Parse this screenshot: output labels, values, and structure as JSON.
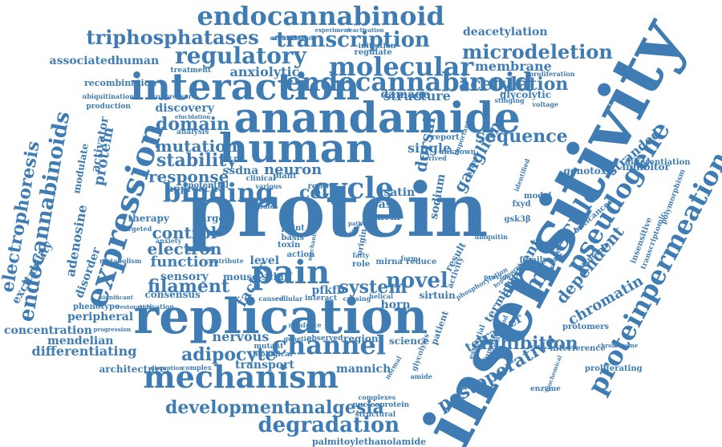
{
  "cloud": {
    "color": "#3e7cb3",
    "background": "#ffffff",
    "words": [
      {
        "text": "protein",
        "size": 92
      },
      {
        "text": "insensitivity",
        "size": 86,
        "rot": -62
      },
      {
        "text": "replication",
        "size": 60
      },
      {
        "text": "anandamide",
        "size": 52
      },
      {
        "text": "human",
        "size": 50
      },
      {
        "text": "interaction",
        "size": 46
      },
      {
        "text": "mechanism",
        "size": 38
      },
      {
        "text": "pain",
        "size": 40
      },
      {
        "text": "expression",
        "size": 40,
        "rot": -72
      },
      {
        "text": "molecular",
        "size": 32
      },
      {
        "text": "endocannabinoid",
        "size": 32
      },
      {
        "text": "binding",
        "size": 32
      },
      {
        "text": "cycle",
        "size": 36
      },
      {
        "text": "channel",
        "size": 32
      },
      {
        "text": "pseudogene",
        "size": 32,
        "rot": -58
      },
      {
        "text": "proteinpermeation",
        "size": 32,
        "rot": -62
      },
      {
        "text": "molecule",
        "size": 30,
        "rot": -58
      },
      {
        "text": "transcription",
        "size": 26
      },
      {
        "text": "regulatory",
        "size": 28
      },
      {
        "text": "triphosphatases",
        "size": 24
      },
      {
        "text": "microdeletion",
        "size": 24
      },
      {
        "text": "acetylation",
        "size": 22
      },
      {
        "text": "degradation",
        "size": 26
      },
      {
        "text": "development",
        "size": 22
      },
      {
        "text": "analgesia",
        "size": 22
      },
      {
        "text": "novel",
        "size": 26
      },
      {
        "text": "system",
        "size": 22
      },
      {
        "text": "domain",
        "size": 22
      },
      {
        "text": "stability",
        "size": 22
      },
      {
        "text": "mutation",
        "size": 20
      },
      {
        "text": "response",
        "size": 20
      },
      {
        "text": "control",
        "size": 20
      },
      {
        "text": "electron",
        "size": 20
      },
      {
        "text": "function",
        "size": 18
      },
      {
        "text": "filament",
        "size": 22
      },
      {
        "text": "adipocyte",
        "size": 22
      },
      {
        "text": "inhibition",
        "size": 22
      },
      {
        "text": "sequence",
        "size": 22
      },
      {
        "text": "postoperative",
        "size": 22,
        "rot": -30
      },
      {
        "text": "tetramer",
        "size": 16,
        "rot": -30
      },
      {
        "text": "endocannabinoids",
        "size": 26,
        "rot": -80
      },
      {
        "text": "electrophoresis",
        "size": 22,
        "rot": -80
      },
      {
        "text": "protein",
        "size": 18,
        "rot": -80
      },
      {
        "text": "adenosine",
        "size": 16,
        "rot": -80
      },
      {
        "text": "dorsal",
        "size": 20,
        "rot": -80
      },
      {
        "text": "ganglion",
        "size": 20,
        "rot": -60
      },
      {
        "text": "dependent",
        "size": 20,
        "rot": -50
      },
      {
        "text": "element",
        "size": 18,
        "rot": -60
      },
      {
        "text": "chromatin",
        "size": 18,
        "rot": -30
      },
      {
        "text": "terminus",
        "size": 14,
        "rot": -60
      },
      {
        "text": "neuron",
        "size": 18
      },
      {
        "text": "cell",
        "size": 22
      },
      {
        "text": "factor",
        "size": 18,
        "rot": -60
      },
      {
        "text": "pfkfb",
        "size": 14
      },
      {
        "text": "nervous",
        "size": 16
      },
      {
        "text": "mannich",
        "size": 14
      },
      {
        "text": "transport",
        "size": 14
      },
      {
        "text": "concentration",
        "size": 14
      },
      {
        "text": "differentiating",
        "size": 16
      },
      {
        "text": "mendelian",
        "size": 14
      },
      {
        "text": "architecture",
        "size": 12
      },
      {
        "text": "peripheral",
        "size": 14
      },
      {
        "text": "excitability",
        "size": 14,
        "rot": -60
      },
      {
        "text": "disorder",
        "size": 14,
        "rot": -70
      },
      {
        "text": "activator",
        "size": 14,
        "rot": -80
      },
      {
        "text": "modulate",
        "size": 12,
        "rot": -80
      },
      {
        "text": "associatedhuman",
        "size": 14
      },
      {
        "text": "recombination",
        "size": 11
      },
      {
        "text": "endocannabinoid",
        "size": 32
      },
      {
        "text": "damage",
        "size": 14
      },
      {
        "text": "structure",
        "size": 16
      },
      {
        "text": "anxiolytic",
        "size": 16
      },
      {
        "text": "membrane",
        "size": 16
      },
      {
        "text": "deacetylation",
        "size": 14
      },
      {
        "text": "glycolytic",
        "size": 12
      },
      {
        "text": "stranded",
        "size": 16,
        "rot": -40
      },
      {
        "text": "genotoxic",
        "size": 12
      },
      {
        "text": "inhibitor",
        "size": 12
      },
      {
        "text": "differentiation",
        "size": 10
      },
      {
        "text": "ssdna",
        "size": 14
      },
      {
        "text": "approach",
        "size": 12
      },
      {
        "text": "discovery",
        "size": 14
      },
      {
        "text": "single",
        "size": 16
      },
      {
        "text": "sodium",
        "size": 14,
        "rot": -80
      },
      {
        "text": "isatin",
        "size": 14
      },
      {
        "text": "base",
        "size": 14
      },
      {
        "text": "tmem",
        "size": 12
      },
      {
        "text": "therapy",
        "size": 12
      },
      {
        "text": "target",
        "size": 12
      },
      {
        "text": "sensory",
        "size": 14
      },
      {
        "text": "level",
        "size": 14
      },
      {
        "text": "mouse",
        "size": 12
      },
      {
        "text": "schiff",
        "size": 12
      },
      {
        "text": "consensus",
        "size": 12
      },
      {
        "text": "phenotype",
        "size": 10
      },
      {
        "text": "region",
        "size": 12
      },
      {
        "text": "science",
        "size": 12
      },
      {
        "text": "interference",
        "size": 10
      },
      {
        "text": "proliferating",
        "size": 10
      },
      {
        "text": "protomers",
        "size": 10
      },
      {
        "text": "sirtuin",
        "size": 12
      },
      {
        "text": "horn",
        "size": 14
      },
      {
        "text": "family",
        "size": 10
      },
      {
        "text": "mirna",
        "size": 10
      },
      {
        "text": "reduce",
        "size": 10
      },
      {
        "text": "palmitoylethanolamide",
        "size": 11
      },
      {
        "text": "nucleoprotein",
        "size": 9
      },
      {
        "text": "structural",
        "size": 9
      },
      {
        "text": "complexes",
        "size": 8
      },
      {
        "text": "activity",
        "size": 10,
        "rot": -70
      },
      {
        "text": "patient",
        "size": 11,
        "rot": -70
      },
      {
        "text": "result",
        "size": 12,
        "rot": -60
      },
      {
        "text": "report",
        "size": 10
      },
      {
        "text": "anticancer",
        "size": 10,
        "rot": -40
      },
      {
        "text": "principle",
        "size": 10,
        "rot": -40
      },
      {
        "text": "insensitive",
        "size": 10,
        "rot": -70
      },
      {
        "text": "polymorphism",
        "size": 9,
        "rot": -70
      },
      {
        "text": "transcriptomic",
        "size": 9,
        "rot": -70
      },
      {
        "text": "model",
        "size": 10
      },
      {
        "text": "fxyd",
        "size": 10
      },
      {
        "text": "gsk3β",
        "size": 10
      },
      {
        "text": "suppressor",
        "size": 8
      },
      {
        "text": "treatment",
        "size": 9
      },
      {
        "text": "ubiquitination",
        "size": 8
      },
      {
        "text": "production",
        "size": 9
      },
      {
        "text": "proliferation",
        "size": 8
      },
      {
        "text": "regulate",
        "size": 10
      },
      {
        "text": "initiation",
        "size": 9
      },
      {
        "text": "organisation",
        "size": 8
      },
      {
        "text": "alternative",
        "size": 7
      },
      {
        "text": "experiment",
        "size": 7
      },
      {
        "text": "reactivation",
        "size": 7
      },
      {
        "text": "analysis",
        "size": 9
      },
      {
        "text": "potential",
        "size": 10
      },
      {
        "text": "clinical",
        "size": 9
      },
      {
        "text": "plant",
        "size": 10
      },
      {
        "text": "various",
        "size": 8
      },
      {
        "text": "root",
        "size": 10
      },
      {
        "text": "studies",
        "size": 8
      },
      {
        "text": "point",
        "size": 10
      },
      {
        "text": "basis",
        "size": 10
      },
      {
        "text": "toxin",
        "size": 10
      },
      {
        "text": "action",
        "size": 10
      },
      {
        "text": "role",
        "size": 10
      },
      {
        "text": "origin",
        "size": 10,
        "rot": -80
      },
      {
        "text": "fatty",
        "size": 8
      },
      {
        "text": "form",
        "size": 8
      },
      {
        "text": "cellular",
        "size": 8
      },
      {
        "text": "interact",
        "size": 9
      },
      {
        "text": "caused",
        "size": 8
      },
      {
        "text": "causing",
        "size": 8
      },
      {
        "text": "helical",
        "size": 8
      },
      {
        "text": "genetic",
        "size": 8
      },
      {
        "text": "observed",
        "size": 9
      },
      {
        "text": "mutant",
        "size": 9
      },
      {
        "text": "biological",
        "size": 9
      },
      {
        "text": "reinforce",
        "size": 8
      },
      {
        "text": "complex",
        "size": 8
      },
      {
        "text": "disruption",
        "size": 7
      },
      {
        "text": "progression",
        "size": 7
      },
      {
        "text": "activation",
        "size": 8
      },
      {
        "text": "restoration",
        "size": 7
      },
      {
        "text": "contribute",
        "size": 8
      },
      {
        "text": "anxiety",
        "size": 8
      },
      {
        "text": "targeted",
        "size": 8
      },
      {
        "text": "metabolism",
        "size": 8
      },
      {
        "text": "normal",
        "size": 8,
        "rot": -60
      },
      {
        "text": "glycolysis",
        "size": 9,
        "rot": -70
      },
      {
        "text": "amide",
        "size": 8
      },
      {
        "text": "essential",
        "size": 9,
        "rot": -70
      },
      {
        "text": "functional",
        "size": 9,
        "rot": -70
      },
      {
        "text": "compound",
        "size": 8,
        "rot": -70
      },
      {
        "text": "enzyme",
        "size": 9
      },
      {
        "text": "biochemical",
        "size": 7,
        "rot": -70
      },
      {
        "text": "chromosome",
        "size": 7
      },
      {
        "text": "phosphorylation",
        "size": 8,
        "rot": -30
      },
      {
        "text": "hypomorphic",
        "size": 7,
        "rot": -40
      },
      {
        "text": "provide",
        "size": 8
      },
      {
        "text": "increase",
        "size": 9,
        "rot": -70
      },
      {
        "text": "identified",
        "size": 8,
        "rot": -70
      },
      {
        "text": "important",
        "size": 8,
        "rot": -70
      },
      {
        "text": "unknown",
        "size": 9
      },
      {
        "text": "derived",
        "size": 8
      },
      {
        "text": "stinging",
        "size": 8
      },
      {
        "text": "voltage",
        "size": 8
      },
      {
        "text": "significant",
        "size": 7
      },
      {
        "text": "elucidation",
        "size": 7
      },
      {
        "text": "mechanistic",
        "size": 7,
        "rot": -80
      },
      {
        "text": "ubiquitin",
        "size": 8
      },
      {
        "text": "arrest",
        "size": 9,
        "rot": -70
      },
      {
        "text": "screening",
        "size": 7,
        "rot": -40
      },
      {
        "text": "pathway",
        "size": 7
      }
    ]
  }
}
